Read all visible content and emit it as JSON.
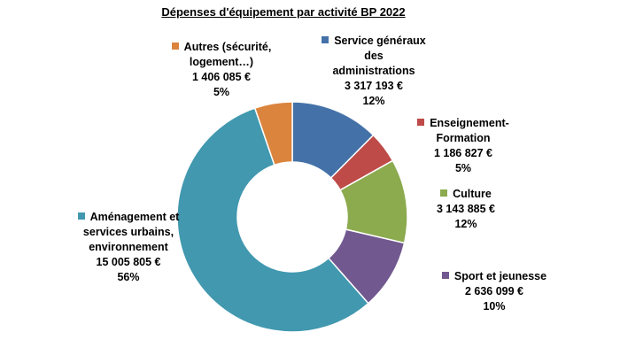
{
  "chart_data": {
    "type": "pie",
    "title": "Dépenses d'équipement par activité BP 2022",
    "slices": [
      {
        "name_lines": [
          "Service généraux",
          "des",
          "administrations"
        ],
        "amount": "3 317 193 €",
        "value": 3317193,
        "percent": "12%",
        "color": "#4472A8"
      },
      {
        "name_lines": [
          "Enseignement-",
          "Formation"
        ],
        "amount": "1 186 827 €",
        "value": 1186827,
        "percent": "5%",
        "color": "#BE4B48"
      },
      {
        "name_lines": [
          "Culture"
        ],
        "amount": "3 143 885 €",
        "value": 3143885,
        "percent": "12%",
        "color": "#8CAA4E"
      },
      {
        "name_lines": [
          "Sport et jeunesse"
        ],
        "amount": "2 636 099 €",
        "value": 2636099,
        "percent": "10%",
        "color": "#71588F"
      },
      {
        "name_lines": [
          "Aménagement et",
          "services urbains,",
          "environnement"
        ],
        "amount": "15 005 805 €",
        "value": 15005805,
        "percent": "56%",
        "color": "#4198AF"
      },
      {
        "name_lines": [
          "Autres (sécurité,",
          "logement…)"
        ],
        "amount": "1 406 085 €",
        "value": 1406085,
        "percent": "5%",
        "color": "#DB843D"
      }
    ]
  }
}
